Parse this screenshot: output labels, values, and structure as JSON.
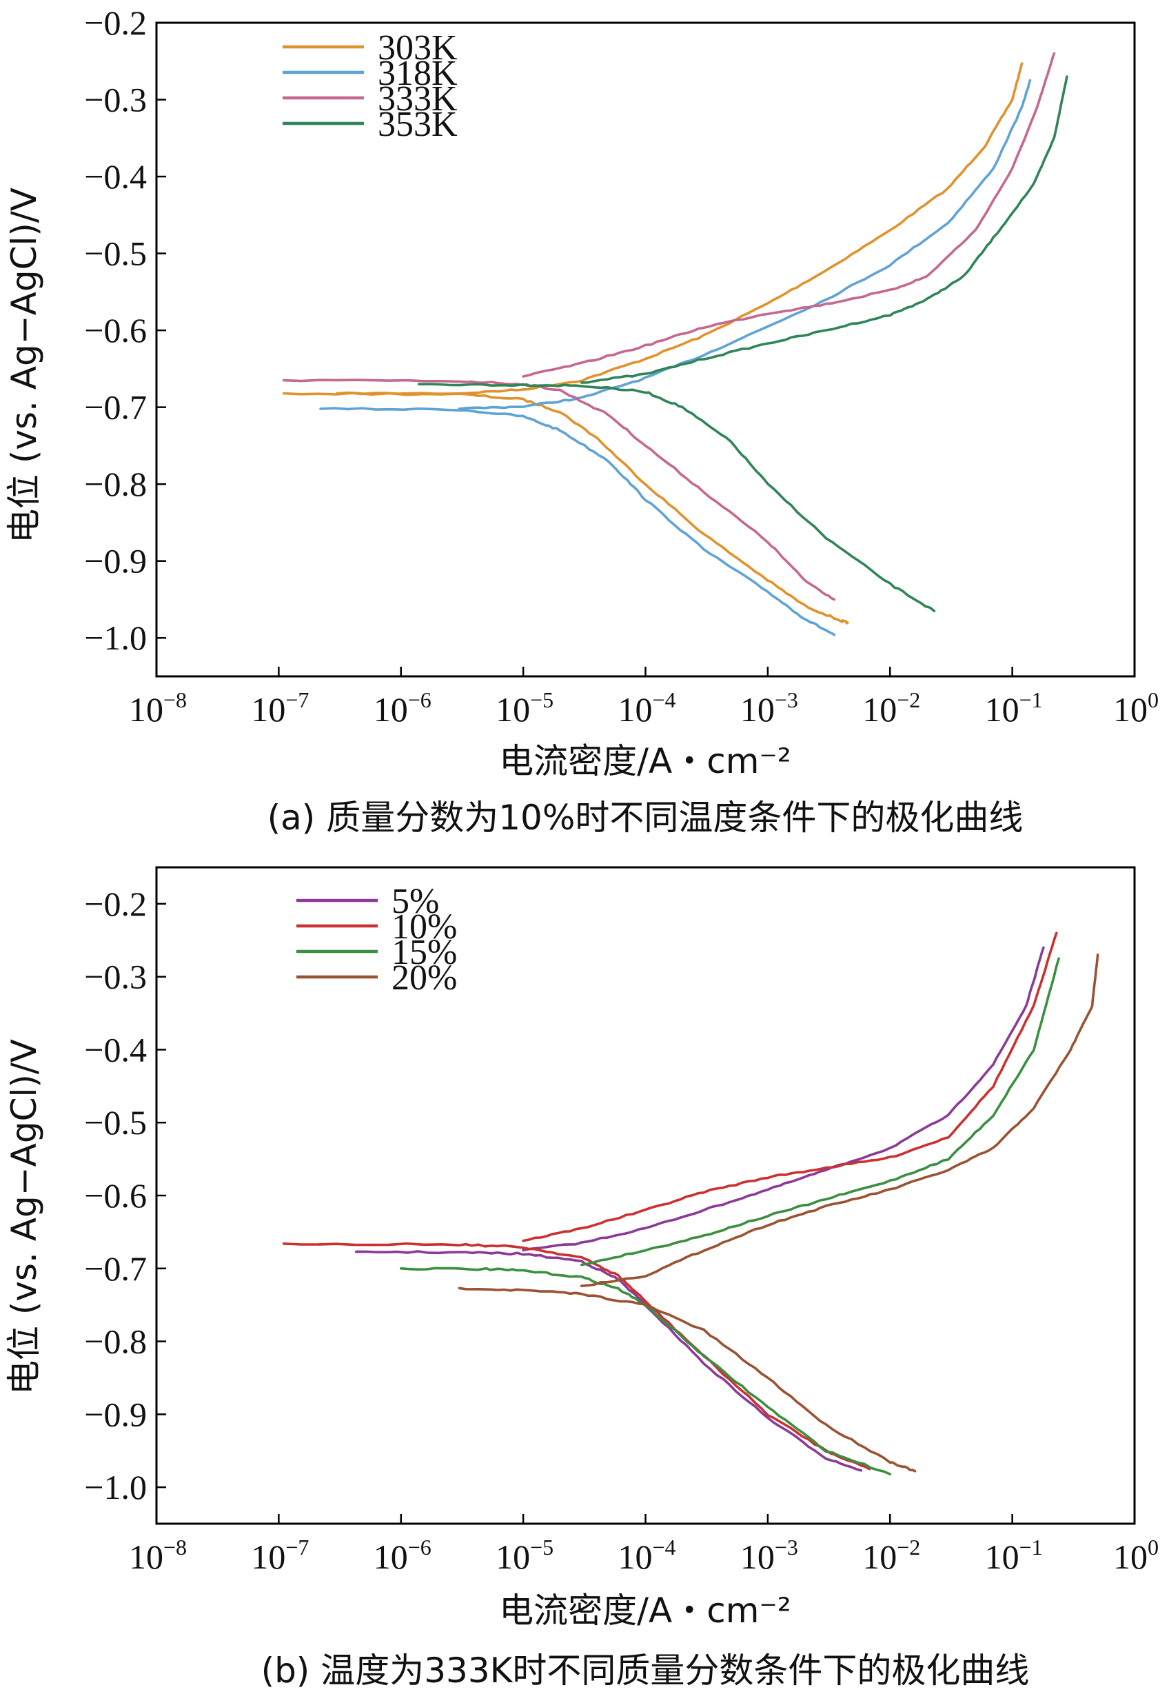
{
  "chart_data": [
    {
      "type": "line",
      "x_scale": "log",
      "xlim": [
        1e-08,
        1
      ],
      "ylim": [
        -1.05,
        -0.2
      ],
      "x_ticks": [
        1e-08,
        1e-07,
        1e-06,
        1e-05,
        0.0001,
        0.001,
        0.01,
        0.1,
        1
      ],
      "x_tick_labels": [
        [
          "10",
          "−8"
        ],
        [
          "10",
          "−7"
        ],
        [
          "10",
          "−6"
        ],
        [
          "10",
          "−5"
        ],
        [
          "10",
          "−4"
        ],
        [
          "10",
          "−3"
        ],
        [
          "10",
          "−2"
        ],
        [
          "10",
          "−1"
        ],
        [
          "10",
          "0"
        ]
      ],
      "y_ticks": [
        -0.2,
        -0.3,
        -0.4,
        -0.5,
        -0.6,
        -0.7,
        -0.8,
        -0.9,
        -1.0
      ],
      "y_tick_labels": [
        "−0.2",
        "−0.3",
        "−0.4",
        "−0.5",
        "−0.6",
        "−0.7",
        "−0.8",
        "−0.9",
        "−1.0"
      ],
      "xlabel": "电流密度/A・cm⁻²",
      "ylabel": "电位 (vs. Ag−AgCl)/V",
      "caption": "(a) 质量分数为10%时不同温度条件下的极化曲线",
      "legend_position": "top-left",
      "grid": false,
      "series": [
        {
          "name": "303K",
          "color": "#E0922C",
          "ecorr": -0.682,
          "anodic": [
            [
              3e-07,
              -0.682
            ],
            [
              3e-06,
              -0.682
            ],
            [
              1e-05,
              -0.677
            ],
            [
              3e-05,
              -0.665
            ],
            [
              0.0001,
              -0.637
            ],
            [
              0.0003,
              -0.607
            ],
            [
              0.001,
              -0.565
            ],
            [
              0.003,
              -0.522
            ],
            [
              0.01,
              -0.47
            ],
            [
              0.03,
              -0.415
            ],
            [
              0.06,
              -0.36
            ],
            [
              0.1,
              -0.3
            ],
            [
              0.12,
              -0.253
            ]
          ],
          "cathodic": [
            [
              1.1e-07,
              -0.682
            ],
            [
              3e-06,
              -0.683
            ],
            [
              1e-05,
              -0.69
            ],
            [
              2e-05,
              -0.706
            ],
            [
              4e-05,
              -0.74
            ],
            [
              0.0001,
              -0.8
            ],
            [
              0.0003,
              -0.865
            ],
            [
              0.001,
              -0.925
            ],
            [
              0.002,
              -0.958
            ],
            [
              0.004,
              -0.978
            ],
            [
              0.0045,
              -0.98
            ]
          ]
        },
        {
          "name": "318K",
          "color": "#5FA3D6",
          "ecorr": -0.702,
          "anodic": [
            [
              3e-06,
              -0.702
            ],
            [
              1e-05,
              -0.699
            ],
            [
              3e-05,
              -0.688
            ],
            [
              0.0001,
              -0.662
            ],
            [
              0.0003,
              -0.632
            ],
            [
              0.001,
              -0.595
            ],
            [
              0.003,
              -0.56
            ],
            [
              0.01,
              -0.515
            ],
            [
              0.03,
              -0.46
            ],
            [
              0.07,
              -0.39
            ],
            [
              0.12,
              -0.31
            ],
            [
              0.14,
              -0.275
            ]
          ],
          "cathodic": [
            [
              2.2e-07,
              -0.702
            ],
            [
              3e-06,
              -0.703
            ],
            [
              1e-05,
              -0.712
            ],
            [
              2e-05,
              -0.73
            ],
            [
              5e-05,
              -0.77
            ],
            [
              0.0001,
              -0.82
            ],
            [
              0.0003,
              -0.885
            ],
            [
              0.001,
              -0.94
            ],
            [
              0.002,
              -0.975
            ],
            [
              0.0035,
              -0.996
            ]
          ]
        },
        {
          "name": "333K",
          "color": "#C6678F",
          "ecorr": -0.665,
          "anodic": [
            [
              1e-05,
              -0.66
            ],
            [
              3e-05,
              -0.643
            ],
            [
              0.0001,
              -0.62
            ],
            [
              0.0003,
              -0.596
            ],
            [
              0.001,
              -0.578
            ],
            [
              0.003,
              -0.566
            ],
            [
              0.01,
              -0.548
            ],
            [
              0.02,
              -0.53
            ],
            [
              0.05,
              -0.47
            ],
            [
              0.1,
              -0.39
            ],
            [
              0.16,
              -0.31
            ],
            [
              0.22,
              -0.24
            ]
          ],
          "cathodic": [
            [
              1.1e-07,
              -0.665
            ],
            [
              3e-06,
              -0.666
            ],
            [
              1e-05,
              -0.67
            ],
            [
              2e-05,
              -0.678
            ],
            [
              5e-05,
              -0.71
            ],
            [
              0.0001,
              -0.75
            ],
            [
              0.0003,
              -0.81
            ],
            [
              0.001,
              -0.875
            ],
            [
              0.002,
              -0.925
            ],
            [
              0.0035,
              -0.95
            ]
          ]
        },
        {
          "name": "353K",
          "color": "#2F8557",
          "ecorr": -0.67,
          "anodic": [
            [
              3e-05,
              -0.668
            ],
            [
              0.0001,
              -0.657
            ],
            [
              0.0003,
              -0.637
            ],
            [
              0.001,
              -0.617
            ],
            [
              0.003,
              -0.6
            ],
            [
              0.01,
              -0.58
            ],
            [
              0.02,
              -0.56
            ],
            [
              0.04,
              -0.53
            ],
            [
              0.07,
              -0.48
            ],
            [
              0.15,
              -0.41
            ],
            [
              0.22,
              -0.35
            ],
            [
              0.28,
              -0.27
            ]
          ],
          "cathodic": [
            [
              1.4e-06,
              -0.67
            ],
            [
              1e-05,
              -0.671
            ],
            [
              3e-05,
              -0.672
            ],
            [
              0.0001,
              -0.68
            ],
            [
              0.0002,
              -0.7
            ],
            [
              0.0005,
              -0.745
            ],
            [
              0.001,
              -0.8
            ],
            [
              0.003,
              -0.87
            ],
            [
              0.01,
              -0.93
            ],
            [
              0.023,
              -0.965
            ]
          ]
        }
      ]
    },
    {
      "type": "line",
      "x_scale": "log",
      "xlim": [
        1e-08,
        1
      ],
      "ylim": [
        -1.05,
        -0.15
      ],
      "x_ticks": [
        1e-08,
        1e-07,
        1e-06,
        1e-05,
        0.0001,
        0.001,
        0.01,
        0.1,
        1
      ],
      "x_tick_labels": [
        [
          "10",
          "−8"
        ],
        [
          "10",
          "−7"
        ],
        [
          "10",
          "−6"
        ],
        [
          "10",
          "−5"
        ],
        [
          "10",
          "−4"
        ],
        [
          "10",
          "−3"
        ],
        [
          "10",
          "−2"
        ],
        [
          "10",
          "−1"
        ],
        [
          "10",
          "0"
        ]
      ],
      "y_ticks": [
        -0.2,
        -0.3,
        -0.4,
        -0.5,
        -0.6,
        -0.7,
        -0.8,
        -0.9,
        -1.0
      ],
      "y_tick_labels": [
        "−0.2",
        "−0.3",
        "−0.4",
        "−0.5",
        "−0.6",
        "−0.7",
        "−0.8",
        "−0.9",
        "−1.0"
      ],
      "xlabel": "电流密度/A・cm⁻²",
      "ylabel": "电位 (vs. Ag−AgCl)/V",
      "caption": "(b) 温度为333K时不同质量分数条件下的极化曲线",
      "legend_position": "top-left",
      "grid": false,
      "series": [
        {
          "name": "5%",
          "color": "#8B3A97",
          "ecorr": -0.677,
          "anodic": [
            [
              1e-05,
              -0.675
            ],
            [
              3e-05,
              -0.665
            ],
            [
              0.0001,
              -0.645
            ],
            [
              0.0003,
              -0.62
            ],
            [
              0.001,
              -0.592
            ],
            [
              0.003,
              -0.565
            ],
            [
              0.01,
              -0.535
            ],
            [
              0.03,
              -0.49
            ],
            [
              0.07,
              -0.42
            ],
            [
              0.13,
              -0.34
            ],
            [
              0.18,
              -0.26
            ]
          ],
          "cathodic": [
            [
              4.3e-07,
              -0.677
            ],
            [
              3e-06,
              -0.678
            ],
            [
              1e-05,
              -0.68
            ],
            [
              3e-05,
              -0.69
            ],
            [
              6e-05,
              -0.715
            ],
            [
              0.0001,
              -0.75
            ],
            [
              0.0003,
              -0.83
            ],
            [
              0.001,
              -0.905
            ],
            [
              0.003,
              -0.96
            ],
            [
              0.0058,
              -0.977
            ]
          ]
        },
        {
          "name": "10%",
          "color": "#CC3030",
          "ecorr": -0.666,
          "anodic": [
            [
              1e-05,
              -0.662
            ],
            [
              3e-05,
              -0.645
            ],
            [
              0.0001,
              -0.62
            ],
            [
              0.0003,
              -0.595
            ],
            [
              0.001,
              -0.575
            ],
            [
              0.003,
              -0.562
            ],
            [
              0.01,
              -0.548
            ],
            [
              0.03,
              -0.52
            ],
            [
              0.07,
              -0.45
            ],
            [
              0.15,
              -0.34
            ],
            [
              0.23,
              -0.24
            ]
          ],
          "cathodic": [
            [
              1.1e-07,
              -0.666
            ],
            [
              3e-06,
              -0.667
            ],
            [
              1e-05,
              -0.671
            ],
            [
              3e-05,
              -0.685
            ],
            [
              6e-05,
              -0.71
            ],
            [
              0.0001,
              -0.745
            ],
            [
              0.0003,
              -0.82
            ],
            [
              0.001,
              -0.9
            ],
            [
              0.003,
              -0.95
            ],
            [
              0.0068,
              -0.975
            ]
          ]
        },
        {
          "name": "15%",
          "color": "#3A8F40",
          "ecorr": -0.7,
          "anodic": [
            [
              3e-05,
              -0.695
            ],
            [
              0.0001,
              -0.675
            ],
            [
              0.0003,
              -0.655
            ],
            [
              0.001,
              -0.628
            ],
            [
              0.003,
              -0.605
            ],
            [
              0.01,
              -0.58
            ],
            [
              0.03,
              -0.55
            ],
            [
              0.07,
              -0.49
            ],
            [
              0.15,
              -0.4
            ],
            [
              0.24,
              -0.275
            ]
          ],
          "cathodic": [
            [
              1e-06,
              -0.7
            ],
            [
              5e-06,
              -0.701
            ],
            [
              1e-05,
              -0.703
            ],
            [
              3e-05,
              -0.712
            ],
            [
              6e-05,
              -0.728
            ],
            [
              0.0001,
              -0.75
            ],
            [
              0.0003,
              -0.82
            ],
            [
              0.001,
              -0.89
            ],
            [
              0.003,
              -0.95
            ],
            [
              0.01,
              -0.982
            ]
          ]
        },
        {
          "name": "20%",
          "color": "#9A5230",
          "ecorr": -0.727,
          "anodic": [
            [
              3e-05,
              -0.724
            ],
            [
              0.0001,
              -0.71
            ],
            [
              0.0003,
              -0.675
            ],
            [
              0.001,
              -0.64
            ],
            [
              0.003,
              -0.615
            ],
            [
              0.01,
              -0.592
            ],
            [
              0.03,
              -0.565
            ],
            [
              0.07,
              -0.535
            ],
            [
              0.15,
              -0.48
            ],
            [
              0.3,
              -0.4
            ],
            [
              0.45,
              -0.34
            ],
            [
              0.5,
              -0.27
            ]
          ],
          "cathodic": [
            [
              3e-06,
              -0.727
            ],
            [
              1e-05,
              -0.73
            ],
            [
              3e-05,
              -0.735
            ],
            [
              0.0001,
              -0.75
            ],
            [
              0.0003,
              -0.785
            ],
            [
              0.001,
              -0.85
            ],
            [
              0.003,
              -0.915
            ],
            [
              0.01,
              -0.965
            ],
            [
              0.016,
              -0.978
            ]
          ]
        }
      ]
    }
  ]
}
